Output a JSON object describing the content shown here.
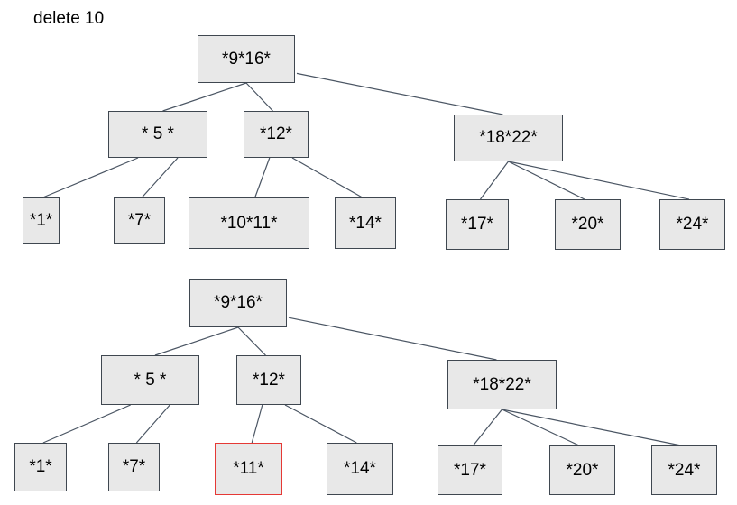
{
  "caption": "delete 10",
  "highlight_color": "#e53935",
  "trees": [
    {
      "nodes": [
        {
          "id": "root",
          "label": "*9*16*"
        },
        {
          "id": "n5",
          "label": "* 5 *"
        },
        {
          "id": "n12",
          "label": "*12*"
        },
        {
          "id": "n1822",
          "label": "*18*22*"
        },
        {
          "id": "n1",
          "label": "*1*"
        },
        {
          "id": "n7",
          "label": "*7*"
        },
        {
          "id": "n1011",
          "label": "*10*11*"
        },
        {
          "id": "n14",
          "label": "*14*"
        },
        {
          "id": "n17",
          "label": "*17*"
        },
        {
          "id": "n20",
          "label": "*20*"
        },
        {
          "id": "n24",
          "label": "*24*"
        }
      ],
      "edges": [
        [
          "root",
          "n5"
        ],
        [
          "root",
          "n12"
        ],
        [
          "root",
          "n1822"
        ],
        [
          "n5",
          "n1"
        ],
        [
          "n5",
          "n7"
        ],
        [
          "n12",
          "n1011"
        ],
        [
          "n12",
          "n14"
        ],
        [
          "n1822",
          "n17"
        ],
        [
          "n1822",
          "n20"
        ],
        [
          "n1822",
          "n24"
        ]
      ]
    },
    {
      "nodes": [
        {
          "id": "root",
          "label": "*9*16*"
        },
        {
          "id": "n5",
          "label": "* 5 *"
        },
        {
          "id": "n12",
          "label": "*12*"
        },
        {
          "id": "n1822",
          "label": "*18*22*"
        },
        {
          "id": "n1",
          "label": "*1*"
        },
        {
          "id": "n7",
          "label": "*7*"
        },
        {
          "id": "n11",
          "label": "*11*",
          "highlight": true
        },
        {
          "id": "n14",
          "label": "*14*"
        },
        {
          "id": "n17",
          "label": "*17*"
        },
        {
          "id": "n20",
          "label": "*20*"
        },
        {
          "id": "n24",
          "label": "*24*"
        }
      ],
      "edges": [
        [
          "root",
          "n5"
        ],
        [
          "root",
          "n12"
        ],
        [
          "root",
          "n1822"
        ],
        [
          "n5",
          "n1"
        ],
        [
          "n5",
          "n7"
        ],
        [
          "n12",
          "n11"
        ],
        [
          "n12",
          "n14"
        ],
        [
          "n1822",
          "n17"
        ],
        [
          "n1822",
          "n20"
        ],
        [
          "n1822",
          "n24"
        ]
      ]
    }
  ]
}
